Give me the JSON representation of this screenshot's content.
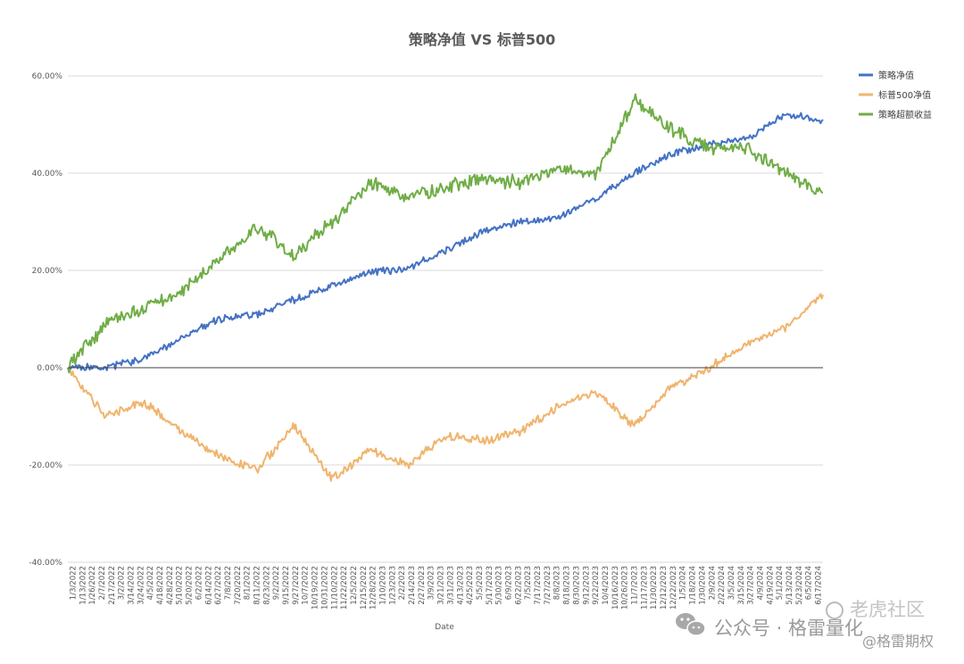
{
  "chart_data": {
    "type": "line",
    "title": "策略净值 VS 标普500",
    "xlabel": "Date",
    "ylabel": "",
    "ylim": [
      -0.4,
      0.6
    ],
    "y_ticks": [
      -0.4,
      -0.2,
      0.0,
      0.2,
      0.4,
      0.6
    ],
    "y_tick_labels": [
      "-40.00%",
      "-20.00%",
      "0.00%",
      "20.00%",
      "40.00%",
      "60.00%"
    ],
    "grid": true,
    "legend_position": "top-right",
    "x_tick_labels": [
      "1/3/2022",
      "1/13/2022",
      "1/26/2022",
      "2/7/2022",
      "2/17/2022",
      "3/2/2022",
      "3/14/2022",
      "3/24/2022",
      "4/5/2022",
      "4/18/2022",
      "4/28/2022",
      "5/10/2022",
      "5/20/2022",
      "6/2/2022",
      "6/14/2022",
      "6/27/2022",
      "7/8/2022",
      "7/20/2022",
      "8/1/2022",
      "8/11/2022",
      "8/23/2022",
      "9/2/2022",
      "9/15/2022",
      "9/27/2022",
      "10/7/2022",
      "10/19/2022",
      "10/31/2022",
      "11/10/2022",
      "11/22/2022",
      "12/5/2022",
      "12/15/2022",
      "12/28/2022",
      "1/10/2023",
      "1/23/2023",
      "2/2/2023",
      "2/14/2023",
      "2/27/2023",
      "3/9/2023",
      "3/21/2023",
      "3/31/2023",
      "4/13/2023",
      "4/25/2023",
      "5/5/2023",
      "5/17/2023",
      "5/30/2023",
      "6/9/2023",
      "6/22/2023",
      "7/5/2023",
      "7/17/2023",
      "7/27/2023",
      "8/8/2023",
      "8/18/2023",
      "8/30/2023",
      "9/12/2023",
      "9/22/2023",
      "10/4/2023",
      "10/16/2023",
      "10/26/2023",
      "11/7/2023",
      "11/17/2023",
      "11/30/2023",
      "12/12/2023",
      "12/22/2023",
      "1/5/2024",
      "1/18/2024",
      "1/30/2024",
      "2/9/2024",
      "2/22/2024",
      "3/5/2024",
      "3/15/2024",
      "3/27/2024",
      "4/9/2024",
      "4/19/2024",
      "5/1/2024",
      "5/13/2024",
      "5/23/2024",
      "6/5/2024",
      "6/17/2024"
    ],
    "x": [
      0,
      0.05,
      0.1,
      0.15,
      0.2,
      0.25,
      0.3,
      0.35,
      0.4,
      0.45,
      0.5,
      0.55,
      0.6,
      0.65,
      0.7,
      0.75,
      0.8,
      0.85,
      0.9,
      0.95,
      1.0
    ],
    "series": [
      {
        "name": "策略净值",
        "color": "#4472c4",
        "values": [
          0.0,
          0.0,
          0.02,
          0.06,
          0.1,
          0.11,
          0.14,
          0.17,
          0.195,
          0.205,
          0.24,
          0.28,
          0.3,
          0.31,
          0.35,
          0.4,
          0.44,
          0.46,
          0.47,
          0.52,
          0.51
        ]
      },
      {
        "name": "标普500净值",
        "color": "#f0b46e",
        "values": [
          0.0,
          -0.1,
          -0.07,
          -0.13,
          -0.18,
          -0.21,
          -0.12,
          -0.23,
          -0.17,
          -0.2,
          -0.14,
          -0.15,
          -0.13,
          -0.08,
          -0.05,
          -0.12,
          -0.04,
          0.0,
          0.05,
          0.08,
          0.15
        ]
      },
      {
        "name": "策略超额收益",
        "color": "#70ad47",
        "values": [
          0.0,
          0.09,
          0.12,
          0.16,
          0.22,
          0.29,
          0.23,
          0.3,
          0.38,
          0.35,
          0.37,
          0.39,
          0.38,
          0.41,
          0.4,
          0.55,
          0.49,
          0.45,
          0.45,
          0.4,
          0.36
        ]
      }
    ]
  },
  "watermark": {
    "brand_main": "公众号 · 格雷量化",
    "brand_community": "老虎社区",
    "brand_handle": "@格雷期权",
    "icon": "wechat-icon"
  }
}
